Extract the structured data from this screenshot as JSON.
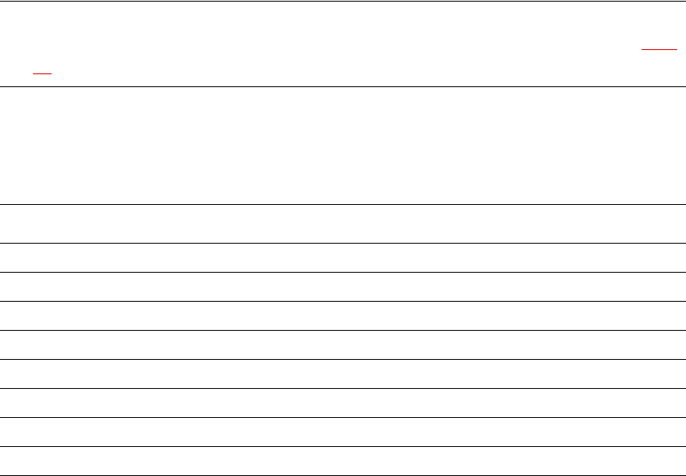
{
  "colors": {
    "background": "#ffffff",
    "rule": "#000000",
    "accent_underline": "#e00000"
  },
  "table": {
    "header_row_count": 2,
    "body_row_count": 9
  }
}
